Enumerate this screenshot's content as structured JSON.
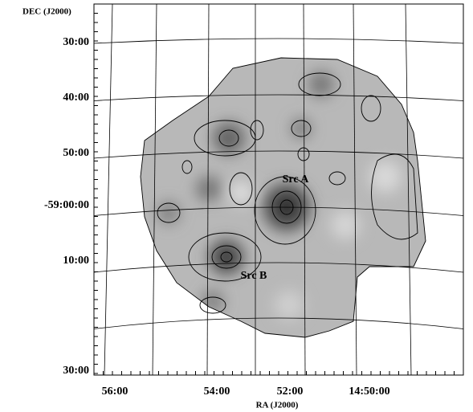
{
  "axes": {
    "y_label": "DEC (J2000)",
    "x_label": "RA (J2000)",
    "y_ticks": [
      "30:00",
      "40:00",
      "50:00",
      "-59:00:00",
      "10:00",
      "30:00"
    ],
    "x_ticks": [
      "56:00",
      "54:00",
      "52:00",
      "14:50:00"
    ]
  },
  "annotations": [
    "Src A",
    "Src B"
  ]
}
